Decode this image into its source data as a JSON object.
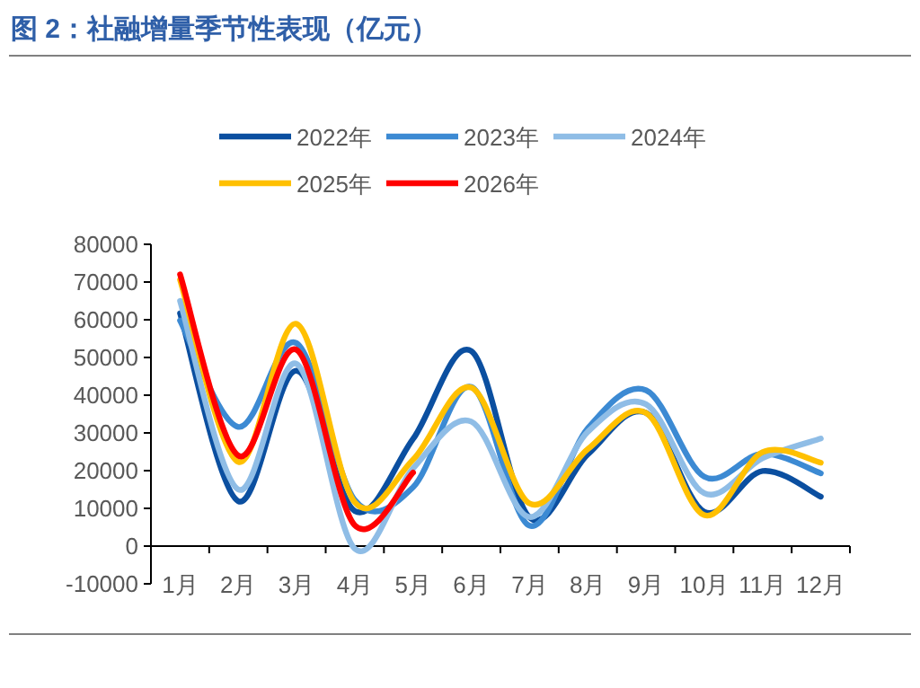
{
  "chart_data": {
    "type": "line",
    "title": "图 2：社融增量季节性表现（亿元）",
    "categories": [
      "1月",
      "2月",
      "3月",
      "4月",
      "5月",
      "6月",
      "7月",
      "8月",
      "9月",
      "10月",
      "11月",
      "12月"
    ],
    "series": [
      {
        "name": "2022年",
        "color": "#0b4fa0",
        "values": [
          61700,
          11900,
          46500,
          9300,
          28400,
          51700,
          7600,
          24300,
          35300,
          9100,
          19900,
          13100
        ]
      },
      {
        "name": "2023年",
        "color": "#3c8ad3",
        "values": [
          59800,
          31600,
          53800,
          12200,
          15600,
          42200,
          5400,
          31200,
          41300,
          18400,
          24500,
          19300
        ]
      },
      {
        "name": "2024年",
        "color": "#8fbde6",
        "values": [
          65000,
          15000,
          48300,
          -700,
          20600,
          33000,
          7700,
          30300,
          37600,
          14000,
          23300,
          28500
        ]
      },
      {
        "name": "2025年",
        "color": "#ffc000",
        "values": [
          70600,
          22300,
          58900,
          11600,
          22900,
          42000,
          11300,
          25700,
          35300,
          8200,
          24900,
          22100
        ]
      },
      {
        "name": "2026年",
        "color": "#ff0000",
        "values": [
          72000,
          24000,
          52000,
          5500,
          19500,
          null,
          null,
          null,
          null,
          null,
          null,
          null
        ]
      }
    ],
    "ylim": [
      -10000,
      80000
    ],
    "yticks": [
      -10000,
      0,
      10000,
      20000,
      30000,
      40000,
      50000,
      60000,
      70000,
      80000
    ],
    "legend": "top"
  }
}
